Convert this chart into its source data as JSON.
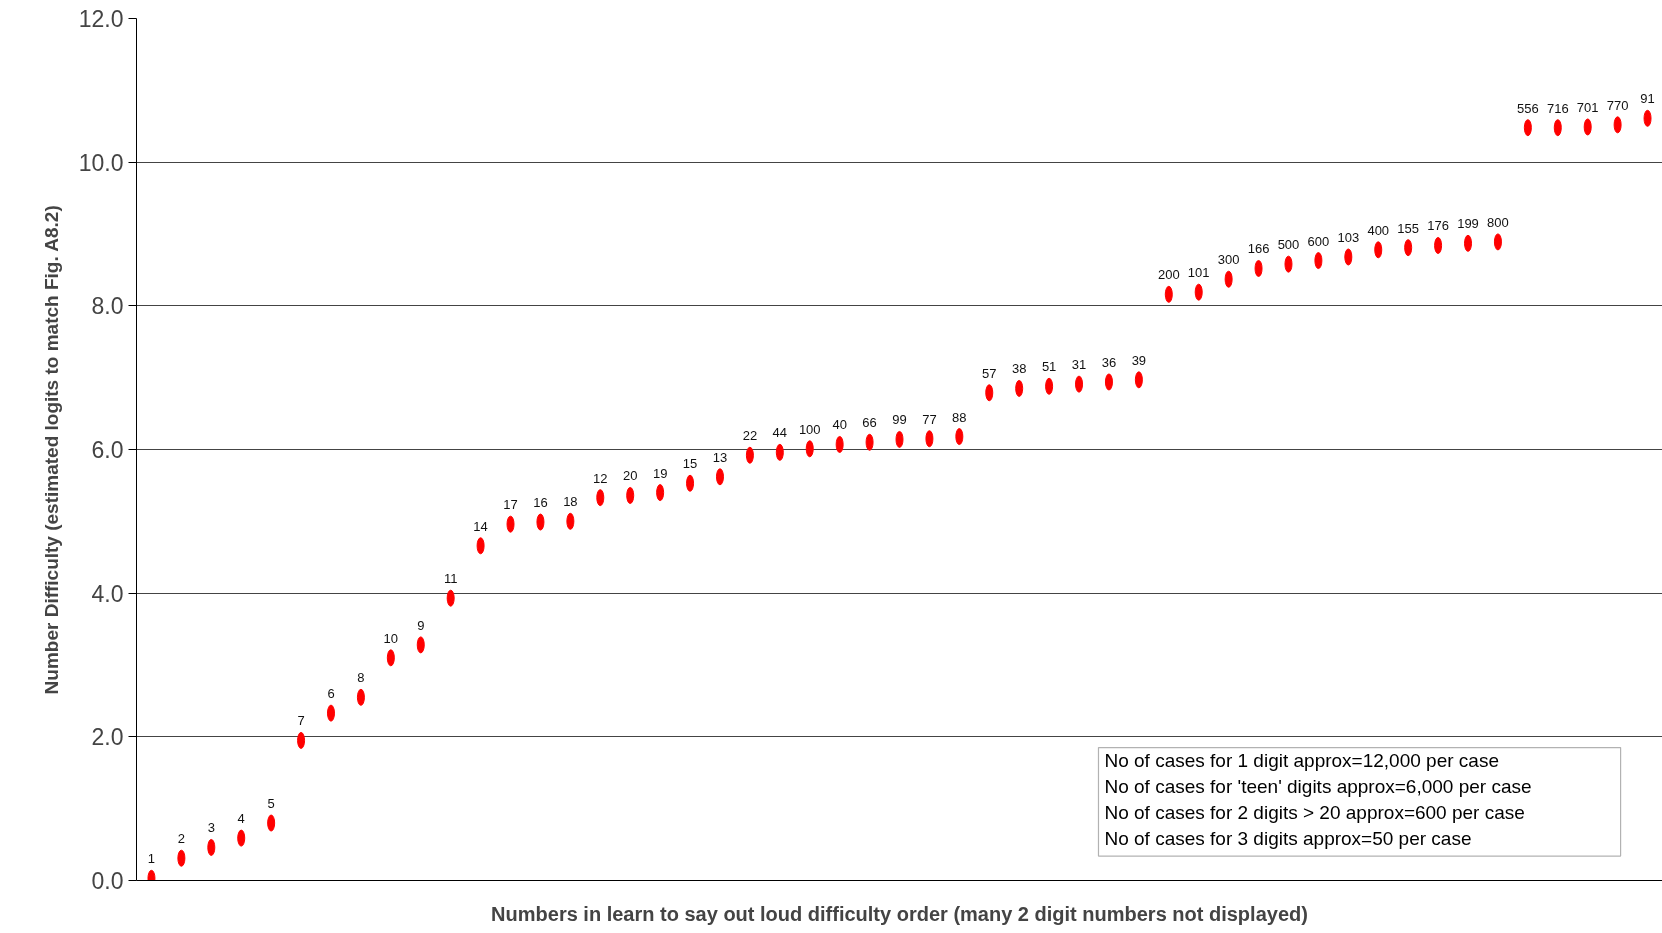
{
  "chart_data": {
    "type": "scatter",
    "xlabel": "Numbers in learn to say out loud difficulty order (many 2 digit numbers not displayed)",
    "ylabel": "Number Difficulty (estimated logits to match Fig. A8.2)",
    "categories": [
      "1",
      "2",
      "3",
      "4",
      "5",
      "7",
      "6",
      "8",
      "10",
      "9",
      "11",
      "14",
      "17",
      "16",
      "18",
      "12",
      "20",
      "19",
      "15",
      "13",
      "22",
      "44",
      "100",
      "40",
      "66",
      "99",
      "77",
      "88",
      "57",
      "38",
      "51",
      "31",
      "36",
      "39",
      "200",
      "101",
      "300",
      "166",
      "500",
      "600",
      "103",
      "400",
      "155",
      "176",
      "199",
      "800",
      "556",
      "716",
      "701",
      "770",
      "91"
    ],
    "series": [
      {
        "color": "#ff0000",
        "values": [
          0.03,
          0.31,
          0.46,
          0.59,
          0.8,
          1.95,
          2.33,
          2.55,
          3.1,
          3.28,
          3.93,
          4.66,
          4.96,
          4.99,
          5.0,
          5.33,
          5.36,
          5.4,
          5.53,
          5.62,
          5.92,
          5.96,
          6.01,
          6.07,
          6.1,
          6.14,
          6.15,
          6.18,
          6.79,
          6.85,
          6.88,
          6.91,
          6.94,
          6.97,
          8.16,
          8.19,
          8.37,
          8.52,
          8.58,
          8.63,
          8.68,
          8.78,
          8.81,
          8.84,
          8.87,
          8.89,
          10.48,
          10.48,
          10.49,
          10.52,
          10.61
        ]
      }
    ],
    "ylim": [
      0,
      12
    ],
    "yticks": [
      {
        "value": 0,
        "label": "0.0"
      },
      {
        "value": 2,
        "label": "2.0"
      },
      {
        "value": 4,
        "label": "4.0"
      },
      {
        "value": 6,
        "label": "6.0"
      },
      {
        "value": 8,
        "label": "8.0"
      },
      {
        "value": 10,
        "label": "10.0"
      },
      {
        "value": 12,
        "label": "12.0"
      }
    ],
    "grid": "y",
    "tick_labels": "y",
    "annotations": [
      "No of cases for 1 digit approx=12,000 per case",
      "No of cases for 'teen' digits approx=6,000 per case",
      "No of cases for 2 digits > 20 approx=600 per case",
      "No of cases for 3 digits approx=50 per case"
    ],
    "marker": "circle"
  }
}
